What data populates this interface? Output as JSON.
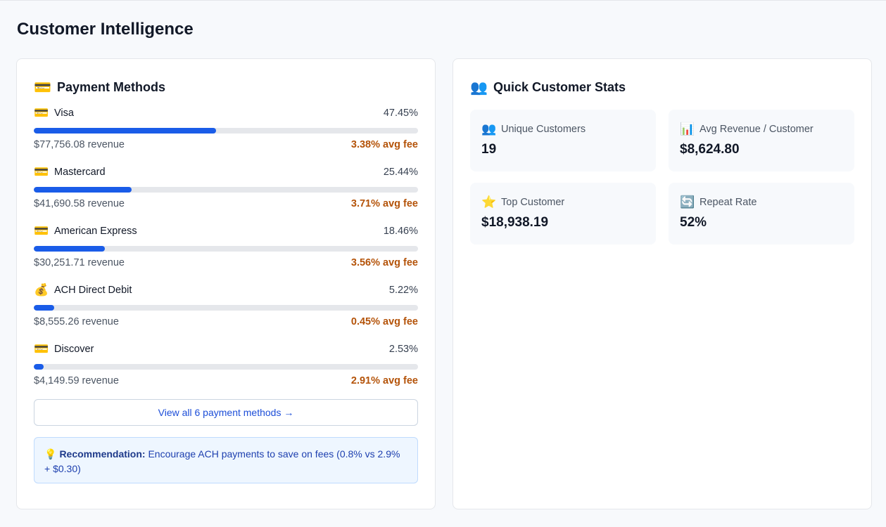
{
  "page": {
    "title": "Customer Intelligence"
  },
  "payment_methods": {
    "title": "Payment Methods",
    "icon": "credit-card-icon",
    "items": [
      {
        "name": "Visa",
        "icon": "credit-card-icon",
        "glyph": "💳",
        "percent": "47.45%",
        "share": 47.45,
        "revenue": "$77,756.08 revenue",
        "fee": "3.38% avg fee"
      },
      {
        "name": "Mastercard",
        "icon": "credit-card-icon",
        "glyph": "💳",
        "percent": "25.44%",
        "share": 25.44,
        "revenue": "$41,690.58 revenue",
        "fee": "3.71% avg fee"
      },
      {
        "name": "American Express",
        "icon": "credit-card-icon",
        "glyph": "💳",
        "percent": "18.46%",
        "share": 18.46,
        "revenue": "$30,251.71 revenue",
        "fee": "3.56% avg fee"
      },
      {
        "name": "ACH Direct Debit",
        "icon": "money-bag-icon",
        "glyph": "💰",
        "percent": "5.22%",
        "share": 5.22,
        "revenue": "$8,555.26 revenue",
        "fee": "0.45% avg fee"
      },
      {
        "name": "Discover",
        "icon": "credit-card-icon",
        "glyph": "💳",
        "percent": "2.53%",
        "share": 2.53,
        "revenue": "$4,149.59 revenue",
        "fee": "2.91% avg fee"
      }
    ],
    "view_all_label": "View all 6 payment methods →",
    "recommendation": {
      "icon": "lightbulb-icon",
      "label": "Recommendation:",
      "text": " Encourage ACH payments to save on fees (0.8% vs 2.9% + $0.30)"
    }
  },
  "quick_stats": {
    "title": "Quick Customer Stats",
    "icon": "people-icon",
    "tiles": [
      {
        "label": "Unique Customers",
        "icon": "people-icon",
        "glyph": "👥",
        "value": "19"
      },
      {
        "label": "Avg Revenue / Customer",
        "icon": "bar-chart-icon",
        "glyph": "📊",
        "value": "$8,624.80"
      },
      {
        "label": "Top Customer",
        "icon": "star-icon",
        "glyph": "⭐",
        "value": "$18,938.19"
      },
      {
        "label": "Repeat Rate",
        "icon": "repeat-icon",
        "glyph": "🔄",
        "value": "52%"
      }
    ]
  },
  "colors": {
    "accent": "#1a5ce8",
    "fee": "#b45309",
    "link": "#1d4ed8"
  }
}
